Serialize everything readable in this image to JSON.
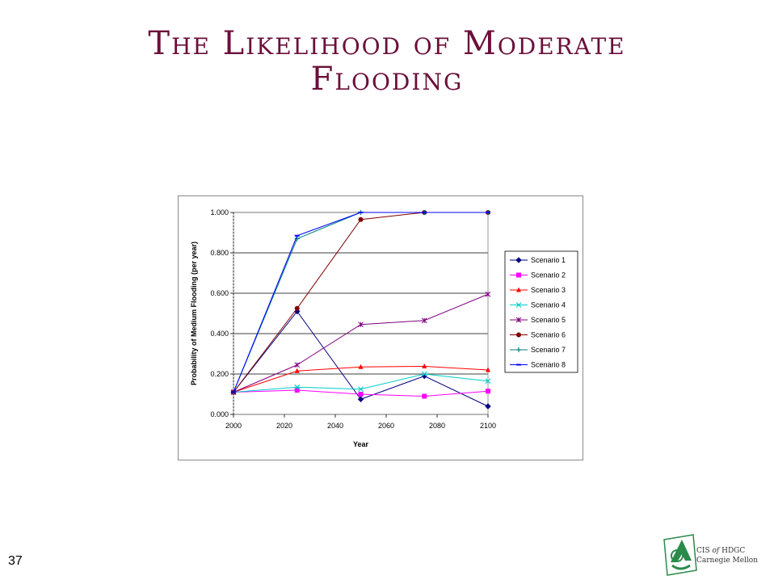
{
  "slide": {
    "title_line1": "The Likelihood of Moderate",
    "title_line2": "Flooding",
    "number": "37",
    "logo_text_line1_a": "CIS",
    "logo_text_line1_b": "of",
    "logo_text_line1_c": "HDGC",
    "logo_text_line2": "Carnegie Mellon"
  },
  "chart_data": {
    "type": "line",
    "title": "",
    "xlabel": "Year",
    "ylabel": "Probability of Medium Flooding (per year)",
    "x": [
      2000,
      2025,
      2050,
      2075,
      2100
    ],
    "xlim": [
      2000,
      2100
    ],
    "ylim": [
      0,
      1
    ],
    "xticks": [
      "2000",
      "2020",
      "2040",
      "2060",
      "2080",
      "2100"
    ],
    "yticks": [
      "0.000",
      "0.200",
      "0.400",
      "0.600",
      "0.800",
      "1.000"
    ],
    "grid": "horizontal",
    "legend_position": "right",
    "series": [
      {
        "name": "Scenario 1",
        "color": "#000080",
        "marker": "diamond",
        "values": [
          0.11,
          0.51,
          0.075,
          0.19,
          0.04
        ]
      },
      {
        "name": "Scenario 2",
        "color": "#ff00ff",
        "marker": "square",
        "values": [
          0.11,
          0.12,
          0.1,
          0.09,
          0.115
        ]
      },
      {
        "name": "Scenario 3",
        "color": "#ff0000",
        "marker": "triangle",
        "values": [
          0.11,
          0.215,
          0.235,
          0.238,
          0.22
        ]
      },
      {
        "name": "Scenario 4",
        "color": "#00cccc",
        "marker": "x",
        "values": [
          0.11,
          0.135,
          0.125,
          0.2,
          0.165
        ]
      },
      {
        "name": "Scenario 5",
        "color": "#800080",
        "marker": "star",
        "values": [
          0.11,
          0.245,
          0.445,
          0.465,
          0.595
        ]
      },
      {
        "name": "Scenario 6",
        "color": "#800000",
        "marker": "circle",
        "values": [
          0.11,
          0.525,
          0.965,
          1.0,
          1.0
        ]
      },
      {
        "name": "Scenario 7",
        "color": "#008080",
        "marker": "plus",
        "values": [
          0.11,
          0.87,
          1.0,
          1.0,
          1.0
        ]
      },
      {
        "name": "Scenario 8",
        "color": "#0000ff",
        "marker": "dash",
        "values": [
          0.11,
          0.885,
          1.0,
          1.0,
          1.0
        ]
      }
    ]
  }
}
